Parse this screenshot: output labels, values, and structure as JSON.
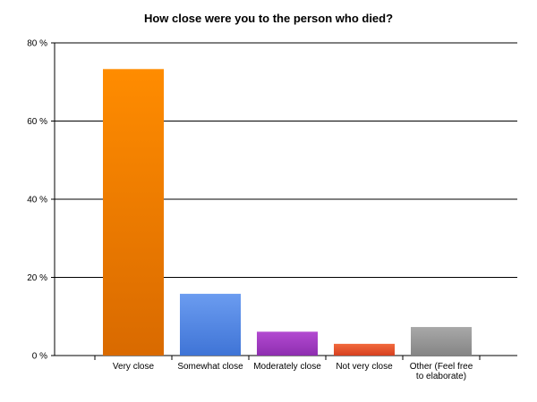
{
  "chart_data": {
    "type": "bar",
    "title": "How close were you to the person who died?",
    "xlabel": "",
    "ylabel": "",
    "ylim": [
      0,
      80
    ],
    "yticks": [
      0,
      20,
      40,
      60,
      80
    ],
    "ytick_suffix": " %",
    "grid": true,
    "legend": "none",
    "categories": [
      [
        "Very close"
      ],
      [
        "Somewhat close"
      ],
      [
        "Moderately close"
      ],
      [
        "Not very close"
      ],
      [
        "Other (Feel free",
        "to elaborate)"
      ]
    ],
    "values": [
      73.3,
      15.8,
      6.1,
      3.0,
      7.3
    ],
    "colors": [
      [
        "#ff8c00",
        "#d96a00"
      ],
      [
        "#6b9cf0",
        "#3f74d6"
      ],
      [
        "#b34ad1",
        "#8e2eb0"
      ],
      [
        "#f26a3d",
        "#d64020"
      ],
      [
        "#a8a8a8",
        "#858585"
      ]
    ]
  }
}
